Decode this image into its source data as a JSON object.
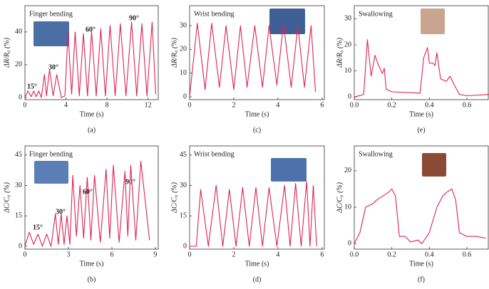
{
  "chart_data": [
    {
      "type": "line",
      "panel": "(a)",
      "title": "Finger bending",
      "xlabel": "Time (s)",
      "ylabel": "ΔR/R₀ (%)",
      "color": "#dc2454",
      "annotations": [
        "15°",
        "30°",
        "60°",
        "90°"
      ],
      "x": [
        0,
        0.3,
        0.6,
        0.85,
        1.1,
        1.35,
        1.6,
        1.9,
        2.1,
        2.4,
        2.75,
        3.1,
        3.55,
        3.9,
        4.2,
        4.55,
        4.9,
        5.3,
        5.7,
        6.1,
        6.5,
        6.95,
        7.4,
        7.85,
        8.3,
        8.8,
        9.3,
        9.85,
        10.4,
        10.9,
        11.4,
        11.9,
        12.4,
        12.75
      ],
      "values": [
        0,
        4,
        0.5,
        4,
        0.5,
        4,
        0,
        14,
        1,
        17,
        1,
        14,
        0,
        1,
        40,
        2,
        40,
        1,
        39,
        1,
        40,
        1,
        42,
        1,
        44,
        1,
        45,
        1,
        46,
        1,
        45,
        1,
        46,
        2
      ],
      "xlim": [
        0,
        13
      ],
      "ylim": [
        -1.3,
        56
      ],
      "xticks": [
        0,
        4,
        8,
        12
      ],
      "yticks": [
        0,
        20,
        40
      ]
    },
    {
      "type": "line",
      "panel": "(c)",
      "title": "Wrist bending",
      "xlabel": "Time (s)",
      "ylabel": "ΔR/R₀ (%)",
      "color": "#dc2454",
      "annotations": [],
      "x": [
        0,
        0.35,
        0.7,
        1.0,
        1.35,
        1.65,
        2.0,
        2.3,
        2.6,
        2.95,
        3.3,
        3.6,
        3.95,
        4.25,
        4.6,
        4.9,
        5.2,
        5.5,
        5.7
      ],
      "values": [
        0,
        31,
        3,
        31,
        4,
        30,
        3,
        30,
        4,
        30,
        4,
        30,
        5,
        31,
        4,
        30,
        4,
        30,
        2
      ],
      "xlim": [
        0,
        6.1
      ],
      "ylim": [
        -1.2,
        38.4
      ],
      "xticks": [
        0,
        2,
        4,
        6
      ],
      "yticks": [
        0,
        10,
        20,
        30
      ]
    },
    {
      "type": "line",
      "panel": "(e)",
      "title": "Swallowing",
      "xlabel": "Time (s)",
      "ylabel": "ΔR/R₀ (%)",
      "color": "#dc2454",
      "annotations": [],
      "x": [
        0,
        0.05,
        0.07,
        0.09,
        0.11,
        0.13,
        0.15,
        0.16,
        0.17,
        0.2,
        0.35,
        0.37,
        0.39,
        0.4,
        0.42,
        0.43,
        0.44,
        0.46,
        0.49,
        0.51,
        0.53,
        0.56,
        0.6,
        0.72
      ],
      "values": [
        0,
        1,
        22,
        8,
        16,
        12,
        9,
        11,
        3,
        2,
        1.5,
        15,
        19,
        13,
        13,
        12,
        17,
        7,
        6,
        8,
        5,
        1,
        0.5,
        1
      ],
      "xlim": [
        0,
        0.714
      ],
      "ylim": [
        -1,
        35
      ],
      "xticks": [
        {
          "value": 0,
          "label": "0.0"
        },
        0.2,
        0.4,
        0.6
      ],
      "yticks": [
        0,
        10,
        20,
        30
      ]
    },
    {
      "type": "line",
      "panel": "(b)",
      "title": "Finger bending",
      "xlabel": "Time (s)",
      "ylabel": "ΔC/C₀ (%)",
      "color": "#dc2454",
      "annotations": [
        "15°",
        "30°",
        "60°",
        "90°"
      ],
      "x": [
        0,
        0.3,
        0.6,
        0.9,
        1.2,
        1.5,
        1.8,
        2.1,
        2.3,
        2.5,
        2.7,
        2.9,
        3.1,
        3.3,
        3.55,
        3.8,
        4.05,
        4.3,
        4.55,
        4.8,
        5.2,
        5.6,
        5.85,
        6.1,
        6.5,
        6.9,
        7.1,
        7.3,
        7.65,
        8.0,
        8.6
      ],
      "values": [
        0,
        7,
        1,
        6,
        0,
        6,
        0,
        16,
        1,
        16,
        1,
        15,
        1,
        35,
        5,
        30,
        4,
        34,
        3,
        35,
        2,
        38,
        4,
        40,
        2,
        37,
        5,
        40,
        3,
        42,
        3
      ],
      "xlim": [
        0,
        9.2
      ],
      "ylim": [
        -1.4,
        49.5
      ],
      "xticks": [
        0,
        3,
        6,
        9
      ],
      "yticks": [
        0,
        15,
        30,
        45
      ]
    },
    {
      "type": "line",
      "panel": "(d)",
      "title": "Wrist bending",
      "xlabel": "Time (s)",
      "ylabel": "ΔC/C₀ (%)",
      "color": "#dc2454",
      "annotations": [],
      "x": [
        0,
        0.3,
        0.5,
        0.85,
        1.2,
        1.5,
        1.8,
        2.1,
        2.4,
        2.7,
        3.0,
        3.3,
        3.6,
        3.95,
        4.3,
        4.55,
        4.8,
        5.05,
        5.3,
        5.45,
        5.6,
        5.75
      ],
      "values": [
        0,
        0,
        28,
        0,
        30,
        0,
        28,
        0,
        29,
        0,
        29,
        0,
        29,
        0,
        30,
        0,
        31,
        0,
        32,
        0,
        30,
        0
      ],
      "xlim": [
        0,
        6.1
      ],
      "ylim": [
        -1.4,
        49.5
      ],
      "xticks": [
        0,
        2,
        4,
        6
      ],
      "yticks": [
        0,
        15,
        30,
        45
      ]
    },
    {
      "type": "line",
      "panel": "(f)",
      "title": "Swallowing",
      "xlabel": "Time (s)",
      "ylabel": "ΔC/C₀ (%)",
      "color": "#dc2454",
      "annotations": [],
      "x": [
        0,
        0.03,
        0.06,
        0.1,
        0.12,
        0.15,
        0.18,
        0.2,
        0.22,
        0.24,
        0.27,
        0.3,
        0.34,
        0.36,
        0.4,
        0.44,
        0.47,
        0.49,
        0.52,
        0.54,
        0.56,
        0.6,
        0.65,
        0.7
      ],
      "values": [
        0,
        3,
        10,
        11,
        12,
        13,
        14,
        15,
        13,
        2,
        2,
        0.5,
        1,
        0,
        3,
        10,
        13,
        14,
        15,
        12,
        3,
        2,
        2,
        1.5
      ],
      "xlim": [
        0,
        0.714
      ],
      "ylim": [
        -1.5,
        26.8
      ],
      "xticks": [
        {
          "value": 0,
          "label": "0.0"
        },
        0.2,
        0.4,
        0.6
      ],
      "yticks": [
        0,
        10,
        20
      ]
    }
  ]
}
